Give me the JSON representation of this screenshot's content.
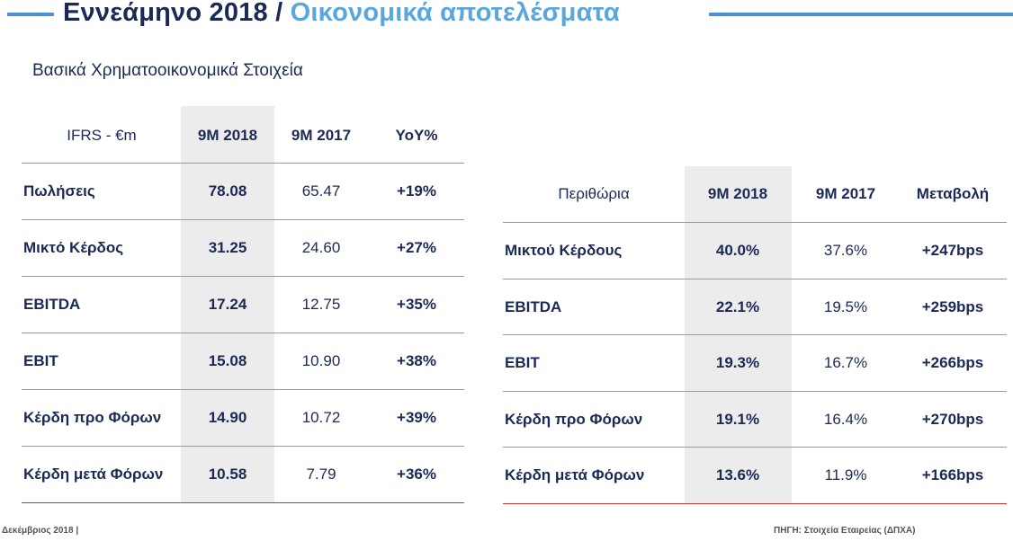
{
  "title": {
    "main": "Εννεάμηνο 2018",
    "separator": "/",
    "sub": "Οικονομικά αποτελέσματα"
  },
  "subtitle": "Βασικά Χρηματοοικονομικά Στοιχεία",
  "financials": {
    "headers": [
      "IFRS - €m",
      "9M 2018",
      "9M 2017",
      "YoY%"
    ],
    "rows": [
      {
        "label": "Πωλήσεις",
        "y2018": "78.08",
        "y2017": "65.47",
        "change": "+19%"
      },
      {
        "label": "Μικτό Κέρδος",
        "y2018": "31.25",
        "y2017": "24.60",
        "change": "+27%"
      },
      {
        "label": "EBITDA",
        "y2018": "17.24",
        "y2017": "12.75",
        "change": "+35%"
      },
      {
        "label": "EBIT",
        "y2018": "15.08",
        "y2017": "10.90",
        "change": "+38%"
      },
      {
        "label": "Κέρδη προ Φόρων",
        "y2018": "14.90",
        "y2017": "10.72",
        "change": "+39%"
      },
      {
        "label": "Κέρδη μετά Φόρων",
        "y2018": "10.58",
        "y2017": "7.79",
        "change": "+36%"
      }
    ]
  },
  "margins": {
    "headers": [
      "Περιθώρια",
      "9M 2018",
      "9M 2017",
      "Μεταβολή"
    ],
    "rows": [
      {
        "label": "Μικτού Κέρδους",
        "y2018": "40.0%",
        "y2017": "37.6%",
        "change": "+247bps"
      },
      {
        "label": "EBITDA",
        "y2018": "22.1%",
        "y2017": "19.5%",
        "change": "+259bps"
      },
      {
        "label": "EBIT",
        "y2018": "19.3%",
        "y2017": "16.7%",
        "change": "+266bps"
      },
      {
        "label": "Κέρδη προ Φόρων",
        "y2018": "19.1%",
        "y2017": "16.4%",
        "change": "+270bps"
      },
      {
        "label": "Κέρδη μετά Φόρων",
        "y2018": "13.6%",
        "y2017": "11.9%",
        "change": "+166bps"
      }
    ]
  },
  "footer": {
    "left": "Δεκέμβριος 2018 |",
    "right": "ΠΗΓΗ: Στοιχεία Εταιρείας (ΔΠΧΑ)"
  }
}
